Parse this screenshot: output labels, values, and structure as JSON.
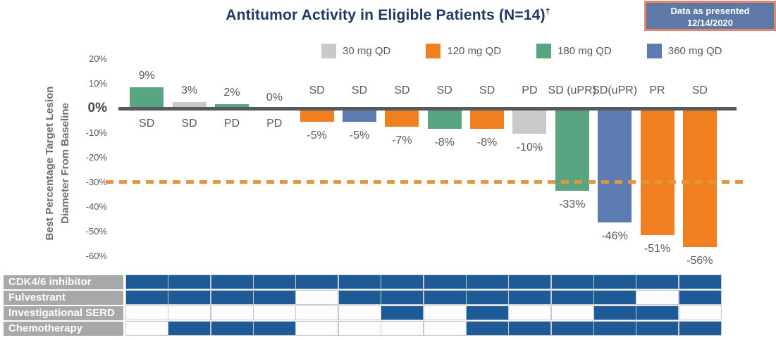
{
  "title": {
    "text": "Antitumor Activity in Eligible Patients (N=14)",
    "superscript": "†"
  },
  "badge": {
    "line1": "Data as presented",
    "line2": "12/14/2020"
  },
  "legend": [
    {
      "label": "30 mg QD",
      "color": "#c9c9c9"
    },
    {
      "label": "120 mg QD",
      "color": "#f0801f"
    },
    {
      "label": "180 mg QD",
      "color": "#57a581"
    },
    {
      "label": "360 mg QD",
      "color": "#5c7cb2"
    }
  ],
  "y_axis": {
    "title_line1": "Best Percentage Target Lesion",
    "title_line2": "Diameter From Baseline"
  },
  "chart_data": {
    "type": "bar",
    "title": "Antitumor Activity in Eligible Patients (N=14)†",
    "ylabel": "Best Percentage Target Lesion Diameter From Baseline",
    "ylim": [
      -60,
      20
    ],
    "grid": false,
    "legend_position": "top",
    "yticks": [
      {
        "value": 20,
        "label": "20%"
      },
      {
        "value": 10,
        "label": "10%"
      },
      {
        "value": 0,
        "label": "0%"
      },
      {
        "value": -10,
        "label": "-10%"
      },
      {
        "value": -20,
        "label": "-20%"
      },
      {
        "value": -30,
        "label": "-30%"
      },
      {
        "value": -40,
        "label": "-40%"
      },
      {
        "value": -50,
        "label": "-50%"
      },
      {
        "value": -60,
        "label": "-60%"
      }
    ],
    "reference_line": {
      "value": -30,
      "style": "dashed"
    },
    "bars": [
      {
        "patient": 1,
        "value": 9,
        "value_label": "9%",
        "response": "SD",
        "dose": "180 mg QD"
      },
      {
        "patient": 2,
        "value": 3,
        "value_label": "3%",
        "response": "SD",
        "dose": "30 mg QD"
      },
      {
        "patient": 3,
        "value": 2,
        "value_label": "2%",
        "response": "PD",
        "dose": "180 mg QD"
      },
      {
        "patient": 4,
        "value": 0,
        "value_label": "0%",
        "response": "PD",
        "dose": null
      },
      {
        "patient": 5,
        "value": -5,
        "value_label": "-5%",
        "response": "SD",
        "dose": "120 mg QD"
      },
      {
        "patient": 6,
        "value": -5,
        "value_label": "-5%",
        "response": "SD",
        "dose": "360 mg QD"
      },
      {
        "patient": 7,
        "value": -7,
        "value_label": "-7%",
        "response": "SD",
        "dose": "120 mg QD"
      },
      {
        "patient": 8,
        "value": -8,
        "value_label": "-8%",
        "response": "SD",
        "dose": "180 mg QD"
      },
      {
        "patient": 9,
        "value": -8,
        "value_label": "-8%",
        "response": "SD",
        "dose": "120 mg QD"
      },
      {
        "patient": 10,
        "value": -10,
        "value_label": "-10%",
        "response": "PD",
        "dose": "30 mg QD"
      },
      {
        "patient": 11,
        "value": -33,
        "value_label": "-33%",
        "response": "SD (uPR)",
        "dose": "180 mg QD"
      },
      {
        "patient": 12,
        "value": -46,
        "value_label": "-46%",
        "response": "SD(uPR)",
        "dose": "360 mg QD"
      },
      {
        "patient": 13,
        "value": -51,
        "value_label": "-51%",
        "response": "PR",
        "dose": "120 mg QD"
      },
      {
        "patient": 14,
        "value": -56,
        "value_label": "-56%",
        "response": "SD",
        "dose": "120 mg QD"
      }
    ]
  },
  "treatment_history": {
    "rows": [
      {
        "label": "CDK4/6 inhibitor",
        "cells": [
          1,
          1,
          1,
          1,
          1,
          1,
          1,
          1,
          1,
          1,
          1,
          1,
          1,
          1
        ]
      },
      {
        "label": "Fulvestrant",
        "cells": [
          1,
          1,
          1,
          1,
          0,
          1,
          1,
          1,
          1,
          1,
          1,
          1,
          0,
          1
        ]
      },
      {
        "label": "Investigational SERD",
        "cells": [
          0,
          0,
          0,
          0,
          0,
          0,
          1,
          0,
          1,
          0,
          0,
          1,
          1,
          0
        ]
      },
      {
        "label": "Chemotherapy",
        "cells": [
          0,
          1,
          1,
          1,
          0,
          0,
          0,
          0,
          1,
          1,
          1,
          1,
          1,
          1
        ]
      }
    ]
  },
  "colors": {
    "title": "#1f3864",
    "chart_text": "#595959",
    "axis_line": "#58595b",
    "reference_dash": "#e2953f",
    "badge_bg": "#5d79a6",
    "badge_border": "#e9846a",
    "badge_text": "#ffffff",
    "table_filled": "#1e5a96",
    "table_empty": "#fcfcfc",
    "table_label_bg": "#a8a8a8",
    "table_border": "#c2cbd4"
  }
}
